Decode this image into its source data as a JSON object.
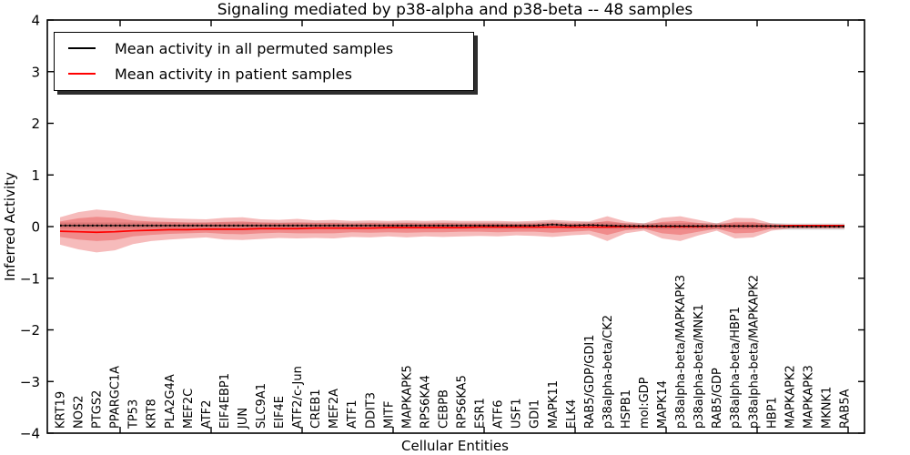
{
  "chart_data": {
    "type": "line",
    "title": "Signaling mediated by p38-alpha and p38-beta -- 48 samples",
    "xlabel": "Cellular Entities",
    "ylabel": "Inferred Activity",
    "ylim": [
      -4,
      4
    ],
    "yticks": [
      -4,
      -3,
      -2,
      -1,
      0,
      1,
      2,
      3,
      4
    ],
    "grid": false,
    "legend_position": "upper left",
    "x_categories": [
      "KRT19",
      "NOS2",
      "PTGS2",
      "PPARGC1A",
      "TP53",
      "KRT8",
      "PLA2G4A",
      "MEF2C",
      "ATF2",
      "EIF4EBP1",
      "JUN",
      "SLC9A1",
      "EIF4E",
      "ATF2/c-Jun",
      "CREB1",
      "MEF2A",
      "ATF1",
      "DDIT3",
      "MITF",
      "MAPKAPK5",
      "RPS6KA4",
      "CEBPB",
      "RPS6KA5",
      "ESR1",
      "ATF6",
      "USF1",
      "GDI1",
      "MAPK11",
      "ELK4",
      "RAB5/GDP/GDI1",
      "p38alpha-beta/CK2",
      "HSPB1",
      "mol:GDP",
      "MAPK14",
      "p38alpha-beta/MAPKAPK3",
      "p38alpha-beta/MNK1",
      "RAB5/GDP",
      "p38alpha-beta/HBP1",
      "p38alpha-beta/MAPKAPK2",
      "HBP1",
      "MAPKAPK2",
      "MAPKAPK3",
      "MKNK1",
      "RAB5A"
    ],
    "series": [
      {
        "name": "Mean activity in all permuted samples",
        "color": "#000000",
        "style": "solid-with-dot-markers",
        "values": [
          0.02,
          0.02,
          0.02,
          0.02,
          0.02,
          0.02,
          0.02,
          0.02,
          0.02,
          0.02,
          0.02,
          0.02,
          0.02,
          0.02,
          0.02,
          0.02,
          0.02,
          0.02,
          0.02,
          0.02,
          0.02,
          0.02,
          0.02,
          0.02,
          0.02,
          0.02,
          0.02,
          0.04,
          0.02,
          0.03,
          0.02,
          0.01,
          0.01,
          0.01,
          0.01,
          0.01,
          0.01,
          0.01,
          0.01,
          0.01,
          0.0,
          0.0,
          0.0,
          0.0
        ]
      },
      {
        "name": "Mean activity in patient samples",
        "color": "#ff0000",
        "style": "solid",
        "values": [
          -0.09,
          -0.1,
          -0.11,
          -0.1,
          -0.08,
          -0.07,
          -0.06,
          -0.06,
          -0.05,
          -0.05,
          -0.05,
          -0.04,
          -0.04,
          -0.04,
          -0.03,
          -0.03,
          -0.03,
          -0.03,
          -0.02,
          -0.02,
          -0.02,
          -0.02,
          -0.02,
          -0.01,
          -0.01,
          -0.01,
          -0.01,
          -0.01,
          -0.01,
          -0.01,
          -0.01,
          0.0,
          0.0,
          0.0,
          0.0,
          0.0,
          0.01,
          0.01,
          0.01,
          0.01,
          0.02,
          0.02,
          0.02,
          0.02
        ]
      }
    ],
    "bands": [
      {
        "name": "patient-samples-outer-spread",
        "color": "rgba(225,30,30,0.30)",
        "hi": [
          0.18,
          0.28,
          0.33,
          0.3,
          0.22,
          0.18,
          0.16,
          0.15,
          0.14,
          0.17,
          0.18,
          0.14,
          0.13,
          0.15,
          0.12,
          0.13,
          0.11,
          0.12,
          0.11,
          0.12,
          0.11,
          0.12,
          0.11,
          0.11,
          0.11,
          0.1,
          0.11,
          0.13,
          0.11,
          0.1,
          0.2,
          0.1,
          0.06,
          0.17,
          0.2,
          0.13,
          0.06,
          0.17,
          0.16,
          0.06,
          0.03,
          0.03,
          0.03,
          0.03
        ],
        "lo": [
          -0.35,
          -0.44,
          -0.5,
          -0.46,
          -0.34,
          -0.28,
          -0.25,
          -0.23,
          -0.21,
          -0.25,
          -0.26,
          -0.24,
          -0.22,
          -0.23,
          -0.22,
          -0.23,
          -0.2,
          -0.21,
          -0.19,
          -0.21,
          -0.19,
          -0.2,
          -0.19,
          -0.18,
          -0.19,
          -0.17,
          -0.18,
          -0.2,
          -0.17,
          -0.15,
          -0.28,
          -0.13,
          -0.08,
          -0.23,
          -0.28,
          -0.17,
          -0.08,
          -0.23,
          -0.21,
          -0.08,
          -0.04,
          -0.04,
          -0.04,
          -0.04
        ]
      },
      {
        "name": "patient-samples-inner-spread",
        "color": "rgba(225,30,30,0.30)",
        "hi": [
          0.1,
          0.16,
          0.19,
          0.17,
          0.12,
          0.1,
          0.09,
          0.08,
          0.08,
          0.09,
          0.1,
          0.08,
          0.07,
          0.08,
          0.07,
          0.07,
          0.06,
          0.07,
          0.06,
          0.07,
          0.06,
          0.07,
          0.06,
          0.06,
          0.06,
          0.05,
          0.06,
          0.07,
          0.06,
          0.06,
          0.11,
          0.06,
          0.03,
          0.09,
          0.11,
          0.07,
          0.03,
          0.09,
          0.09,
          0.03,
          0.02,
          0.02,
          0.02,
          0.02
        ],
        "lo": [
          -0.2,
          -0.25,
          -0.28,
          -0.26,
          -0.19,
          -0.16,
          -0.14,
          -0.13,
          -0.12,
          -0.14,
          -0.15,
          -0.13,
          -0.12,
          -0.13,
          -0.13,
          -0.13,
          -0.11,
          -0.12,
          -0.11,
          -0.12,
          -0.11,
          -0.11,
          -0.1,
          -0.1,
          -0.11,
          -0.1,
          -0.1,
          -0.12,
          -0.1,
          -0.08,
          -0.16,
          -0.07,
          -0.04,
          -0.13,
          -0.16,
          -0.1,
          -0.04,
          -0.13,
          -0.12,
          -0.04,
          -0.02,
          -0.02,
          -0.02,
          -0.02
        ]
      },
      {
        "name": "permuted-samples-spread",
        "color": "rgba(120,120,120,0.28)",
        "halfwidth": 0.06
      }
    ]
  }
}
